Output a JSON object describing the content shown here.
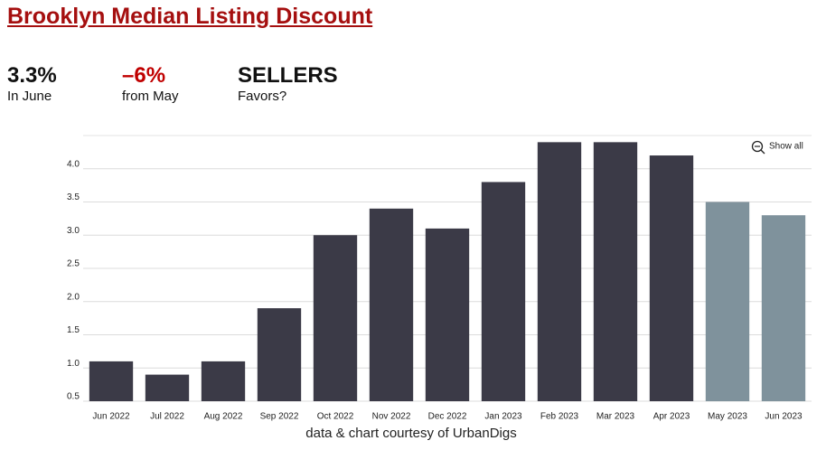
{
  "header": {
    "title": "Brooklyn Median Listing Discount",
    "stats": [
      {
        "value": "3.3%",
        "label": "In June"
      },
      {
        "value": "–6%",
        "label": "from May"
      },
      {
        "value": "SELLERS",
        "label": "Favors?"
      }
    ]
  },
  "controls": {
    "show_all": "Show all"
  },
  "chart_data": {
    "type": "bar",
    "categories": [
      "Jun 2022",
      "Jul 2022",
      "Aug 2022",
      "Sep 2022",
      "Oct 2022",
      "Nov 2022",
      "Dec 2022",
      "Jan 2023",
      "Feb 2023",
      "Mar 2023",
      "Apr 2023",
      "May 2023",
      "Jun 2023"
    ],
    "values": [
      1.1,
      0.9,
      1.1,
      1.9,
      3.0,
      3.4,
      3.1,
      3.8,
      4.4,
      4.4,
      4.2,
      3.5,
      3.3
    ],
    "colors": [
      "#3b3a47",
      "#3b3a47",
      "#3b3a47",
      "#3b3a47",
      "#3b3a47",
      "#3b3a47",
      "#3b3a47",
      "#3b3a47",
      "#3b3a47",
      "#3b3a47",
      "#3b3a47",
      "#7f929c",
      "#7f929c"
    ],
    "ylim": [
      0.5,
      4.5
    ],
    "yticks": [
      0.5,
      {
        "value": 1,
        "label": "1.0"
      },
      1.5,
      {
        "value": 2,
        "label": "2.0"
      },
      2.5,
      {
        "value": 3,
        "label": "3.0"
      },
      3.5,
      {
        "value": 4,
        "label": "4.0"
      }
    ],
    "grid": true
  },
  "footer": {
    "credit": "data & chart courtesy of UrbanDigs"
  }
}
